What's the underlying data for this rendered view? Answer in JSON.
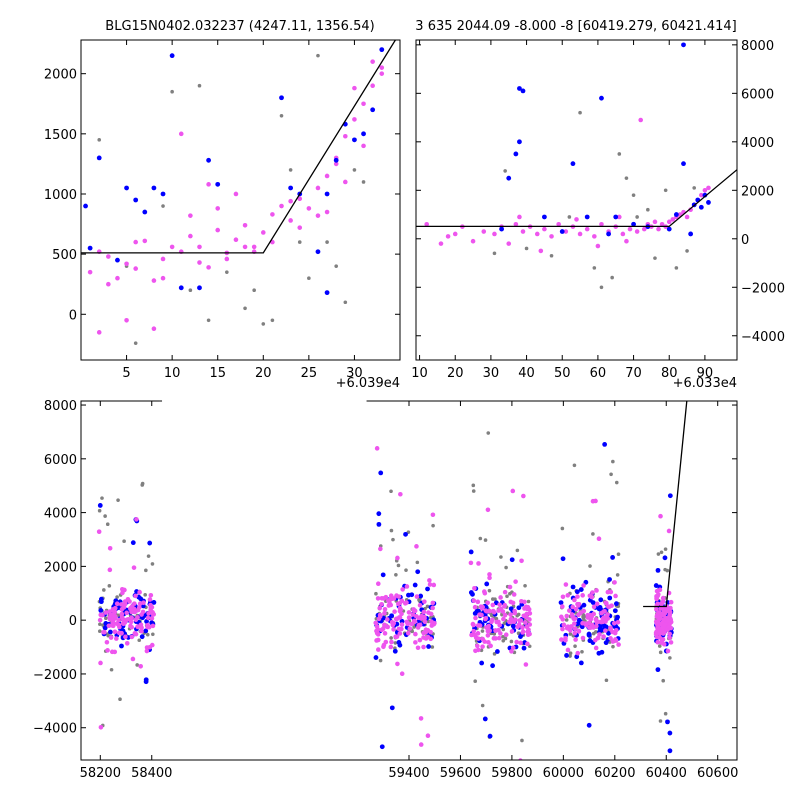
{
  "titles": {
    "top_left": "BLG15N0402.032237 (4247.11, 1356.54)",
    "top_right": "3 635 2044.09 -8.000 -8 [60419.279, 60421.414]"
  },
  "offsets": {
    "top_left": "+6.039e4",
    "top_right": "+6.033e4"
  },
  "colors": {
    "gray": "#808080",
    "blue": "#0000ff",
    "magenta": "#ee55ee",
    "model": "#000000"
  },
  "chart_data": [
    {
      "id": "zoom_peak",
      "type": "scatter",
      "title": "BLG15N0402.032237 (4247.11, 1356.54)",
      "x_offset_label": "+6.039e4",
      "xlim": [
        0,
        35
      ],
      "ylim": [
        -380,
        2280
      ],
      "x_ticks": [
        5,
        10,
        15,
        20,
        25,
        30
      ],
      "y_ticks": [
        0,
        500,
        1000,
        1500,
        2000
      ],
      "y_axis_side": "left",
      "series": [
        {
          "color": "magenta",
          "values": [
            [
              1,
              350
            ],
            [
              2,
              520
            ],
            [
              3,
              480
            ],
            [
              4,
              300
            ],
            [
              5,
              420
            ],
            [
              6,
              380
            ],
            [
              7,
              610
            ],
            [
              8,
              280
            ],
            [
              9,
              460
            ],
            [
              10,
              560
            ],
            [
              11,
              520
            ],
            [
              12,
              650
            ],
            [
              13,
              430
            ],
            [
              14,
              390
            ],
            [
              15,
              700
            ],
            [
              16,
              510
            ],
            [
              17,
              620
            ],
            [
              18,
              740
            ],
            [
              19,
              560
            ],
            [
              20,
              680
            ],
            [
              21,
              830
            ],
            [
              22,
              900
            ],
            [
              23,
              780
            ],
            [
              24,
              960
            ],
            [
              25,
              880
            ],
            [
              26,
              1050
            ],
            [
              27,
              1150
            ],
            [
              28,
              1300
            ],
            [
              29,
              1480
            ],
            [
              30,
              1620
            ],
            [
              31,
              1750
            ],
            [
              32,
              1900
            ],
            [
              33,
              2000
            ],
            [
              3,
              250
            ],
            [
              6,
              600
            ],
            [
              9,
              300
            ],
            [
              12,
              820
            ],
            [
              15,
              880
            ],
            [
              18,
              560
            ],
            [
              24,
              720
            ],
            [
              27,
              850
            ],
            [
              29,
              1100
            ],
            [
              31,
              1400
            ],
            [
              32,
              2100
            ],
            [
              11,
              1500
            ],
            [
              14,
              1080
            ],
            [
              17,
              1000
            ],
            [
              2,
              -150
            ],
            [
              5,
              -50
            ],
            [
              8,
              -120
            ],
            [
              13,
              560
            ],
            [
              16,
              460
            ],
            [
              19,
              520
            ],
            [
              21,
              600
            ],
            [
              23,
              940
            ],
            [
              26,
              820
            ],
            [
              28,
              1250
            ],
            [
              30,
              1880
            ],
            [
              33,
              2050
            ]
          ]
        },
        {
          "color": "blue",
          "values": [
            [
              0.5,
              900
            ],
            [
              1,
              550
            ],
            [
              2,
              1300
            ],
            [
              4,
              450
            ],
            [
              5,
              1050
            ],
            [
              6,
              950
            ],
            [
              8,
              1050
            ],
            [
              9,
              1000
            ],
            [
              10,
              2150
            ],
            [
              11,
              220
            ],
            [
              13,
              220
            ],
            [
              14,
              1280
            ],
            [
              15,
              1080
            ],
            [
              22,
              1800
            ],
            [
              23,
              1050
            ],
            [
              24,
              1000
            ],
            [
              26,
              520
            ],
            [
              27,
              1000
            ],
            [
              28,
              1280
            ],
            [
              29,
              1580
            ],
            [
              30,
              1450
            ],
            [
              31,
              1500
            ],
            [
              32,
              1700
            ],
            [
              33,
              2200
            ],
            [
              27,
              180
            ],
            [
              7,
              850
            ]
          ]
        },
        {
          "color": "gray",
          "values": [
            [
              2,
              1450
            ],
            [
              5,
              400
            ],
            [
              9,
              900
            ],
            [
              10,
              1850
            ],
            [
              13,
              1900
            ],
            [
              16,
              350
            ],
            [
              18,
              50
            ],
            [
              20,
              -80
            ],
            [
              22,
              1650
            ],
            [
              24,
              600
            ],
            [
              25,
              300
            ],
            [
              26,
              2150
            ],
            [
              28,
              400
            ],
            [
              30,
              1200
            ],
            [
              31,
              1100
            ],
            [
              6,
              -240
            ],
            [
              12,
              200
            ],
            [
              14,
              -50
            ],
            [
              17,
              1000
            ],
            [
              19,
              200
            ],
            [
              21,
              -50
            ],
            [
              23,
              1200
            ],
            [
              27,
              600
            ],
            [
              29,
              100
            ]
          ]
        }
      ],
      "model": [
        [
          0,
          510
        ],
        [
          20,
          510
        ],
        [
          34.5,
          2280
        ]
      ]
    },
    {
      "id": "zoom_season",
      "type": "scatter",
      "title": "3 635 2044.09 -8.000 -8 [60419.279, 60421.414]",
      "x_offset_label": "+6.033e4",
      "xlim": [
        9,
        99
      ],
      "ylim": [
        -5000,
        8200
      ],
      "x_ticks": [
        10,
        20,
        30,
        40,
        50,
        60,
        70,
        80,
        90
      ],
      "y_ticks": [
        -4000,
        -2000,
        0,
        2000,
        4000,
        6000,
        8000
      ],
      "y_axis_side": "right",
      "series": [
        {
          "color": "magenta",
          "values": [
            [
              12,
              600
            ],
            [
              16,
              -200
            ],
            [
              18,
              100
            ],
            [
              20,
              200
            ],
            [
              22,
              500
            ],
            [
              25,
              -100
            ],
            [
              28,
              300
            ],
            [
              31,
              200
            ],
            [
              33,
              500
            ],
            [
              35,
              -200
            ],
            [
              37,
              600
            ],
            [
              39,
              300
            ],
            [
              41,
              500
            ],
            [
              43,
              200
            ],
            [
              45,
              400
            ],
            [
              47,
              100
            ],
            [
              49,
              600
            ],
            [
              51,
              300
            ],
            [
              53,
              500
            ],
            [
              55,
              200
            ],
            [
              57,
              400
            ],
            [
              59,
              100
            ],
            [
              61,
              600
            ],
            [
              63,
              300
            ],
            [
              65,
              500
            ],
            [
              67,
              200
            ],
            [
              69,
              400
            ],
            [
              71,
              300
            ],
            [
              72,
              4900
            ],
            [
              73,
              400
            ],
            [
              74,
              600
            ],
            [
              75,
              500
            ],
            [
              76,
              700
            ],
            [
              77,
              400
            ],
            [
              78,
              600
            ],
            [
              79,
              500
            ],
            [
              80,
              700
            ],
            [
              81,
              800
            ],
            [
              82,
              900
            ],
            [
              83,
              1000
            ],
            [
              84,
              1100
            ],
            [
              85,
              900
            ],
            [
              86,
              1200
            ],
            [
              87,
              1400
            ],
            [
              88,
              1600
            ],
            [
              89,
              1800
            ],
            [
              90,
              2000
            ],
            [
              91,
              2100
            ],
            [
              60,
              -300
            ],
            [
              68,
              -100
            ],
            [
              44,
              -500
            ],
            [
              38,
              900
            ],
            [
              54,
              800
            ],
            [
              66,
              900
            ]
          ]
        },
        {
          "color": "blue",
          "values": [
            [
              33,
              400
            ],
            [
              35,
              2500
            ],
            [
              38,
              6200
            ],
            [
              39,
              6100
            ],
            [
              38,
              4000
            ],
            [
              37,
              3500
            ],
            [
              45,
              900
            ],
            [
              50,
              300
            ],
            [
              53,
              3100
            ],
            [
              57,
              900
            ],
            [
              61,
              5800
            ],
            [
              63,
              200
            ],
            [
              65,
              900
            ],
            [
              70,
              600
            ],
            [
              74,
              500
            ],
            [
              80,
              400
            ],
            [
              82,
              1000
            ],
            [
              84,
              3100
            ],
            [
              86,
              200
            ],
            [
              87,
              1400
            ],
            [
              88,
              1600
            ],
            [
              89,
              1300
            ],
            [
              90,
              1800
            ],
            [
              91,
              1500
            ],
            [
              84,
              8000
            ]
          ]
        },
        {
          "color": "gray",
          "values": [
            [
              31,
              -600
            ],
            [
              34,
              2800
            ],
            [
              40,
              -400
            ],
            [
              47,
              -700
            ],
            [
              52,
              900
            ],
            [
              55,
              5200
            ],
            [
              59,
              -1200
            ],
            [
              61,
              -2000
            ],
            [
              64,
              -1600
            ],
            [
              66,
              3500
            ],
            [
              68,
              2500
            ],
            [
              71,
              900
            ],
            [
              74,
              1200
            ],
            [
              79,
              2000
            ],
            [
              82,
              -1200
            ],
            [
              85,
              -500
            ],
            [
              87,
              2100
            ],
            [
              76,
              -800
            ],
            [
              70,
              1800
            ]
          ]
        }
      ],
      "model": [
        [
          9,
          510
        ],
        [
          80,
          510
        ],
        [
          99,
          2850
        ]
      ]
    },
    {
      "id": "full_lightcurve",
      "type": "scatter",
      "xlim": [
        58125,
        60675
      ],
      "ylim": [
        -5200,
        8150
      ],
      "x_ticks": [
        58200,
        58400,
        59400,
        59600,
        59800,
        60000,
        60200,
        60400,
        60600
      ],
      "y_ticks": [
        -4000,
        -2000,
        0,
        2000,
        4000,
        6000,
        8000
      ],
      "y_axis_side": "left",
      "seasons": [
        {
          "x_range": [
            58195,
            58410
          ],
          "core_sigma": 550,
          "outliers": 0.45
        },
        {
          "x_range": [
            59270,
            59500
          ],
          "core_sigma": 550,
          "outliers": 0.6
        },
        {
          "x_range": [
            59640,
            59870
          ],
          "core_sigma": 600,
          "outliers": 0.45
        },
        {
          "x_range": [
            59990,
            60215
          ],
          "core_sigma": 550,
          "outliers": 0.45
        },
        {
          "x_range": [
            60360,
            60420
          ],
          "core_sigma": 450,
          "outliers": 0.35
        }
      ],
      "series_colors": [
        "gray",
        "blue",
        "magenta"
      ],
      "model": [
        [
          60310,
          510
        ],
        [
          60400,
          510
        ],
        [
          60480,
          8150
        ]
      ]
    }
  ]
}
